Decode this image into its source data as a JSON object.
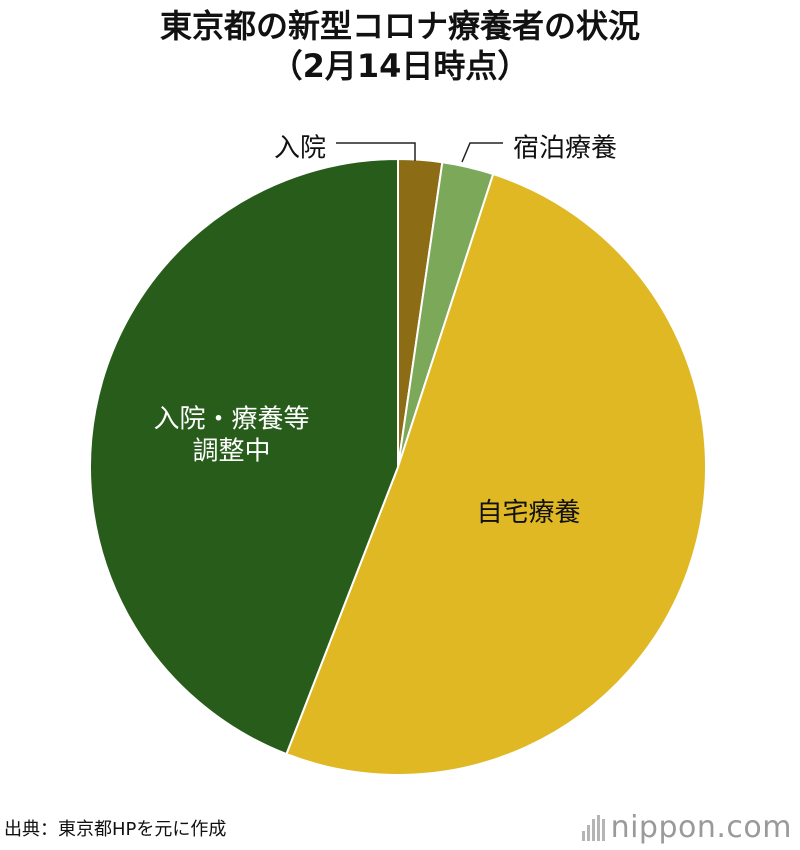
{
  "title": {
    "line1": "東京都の新型コロナ療養者の状況",
    "line2": "（2月14日時点）"
  },
  "chart_data": {
    "type": "pie",
    "title": "東京都の新型コロナ療養者の状況（2月14日時点）",
    "start_angle_deg": 0,
    "direction": "clockwise",
    "slices": [
      {
        "label": "入院",
        "value": 2.3,
        "color": "#8c6c14",
        "label_placement": "outside"
      },
      {
        "label": "宿泊療養",
        "value": 2.7,
        "color": "#7ca85a",
        "label_placement": "outside"
      },
      {
        "label": "自宅療養",
        "value": 50.9,
        "color": "#dfb824",
        "label_placement": "inside"
      },
      {
        "label": "入院・療養等\n調整中",
        "value": 44.1,
        "color": "#275c1b",
        "label_placement": "inside"
      }
    ]
  },
  "footer": {
    "source": "出典：東京都HPを元に作成",
    "brand_name": "nippon",
    "brand_dot": ".",
    "brand_suffix": "com",
    "brand_icon": "nippon-bars-icon"
  }
}
